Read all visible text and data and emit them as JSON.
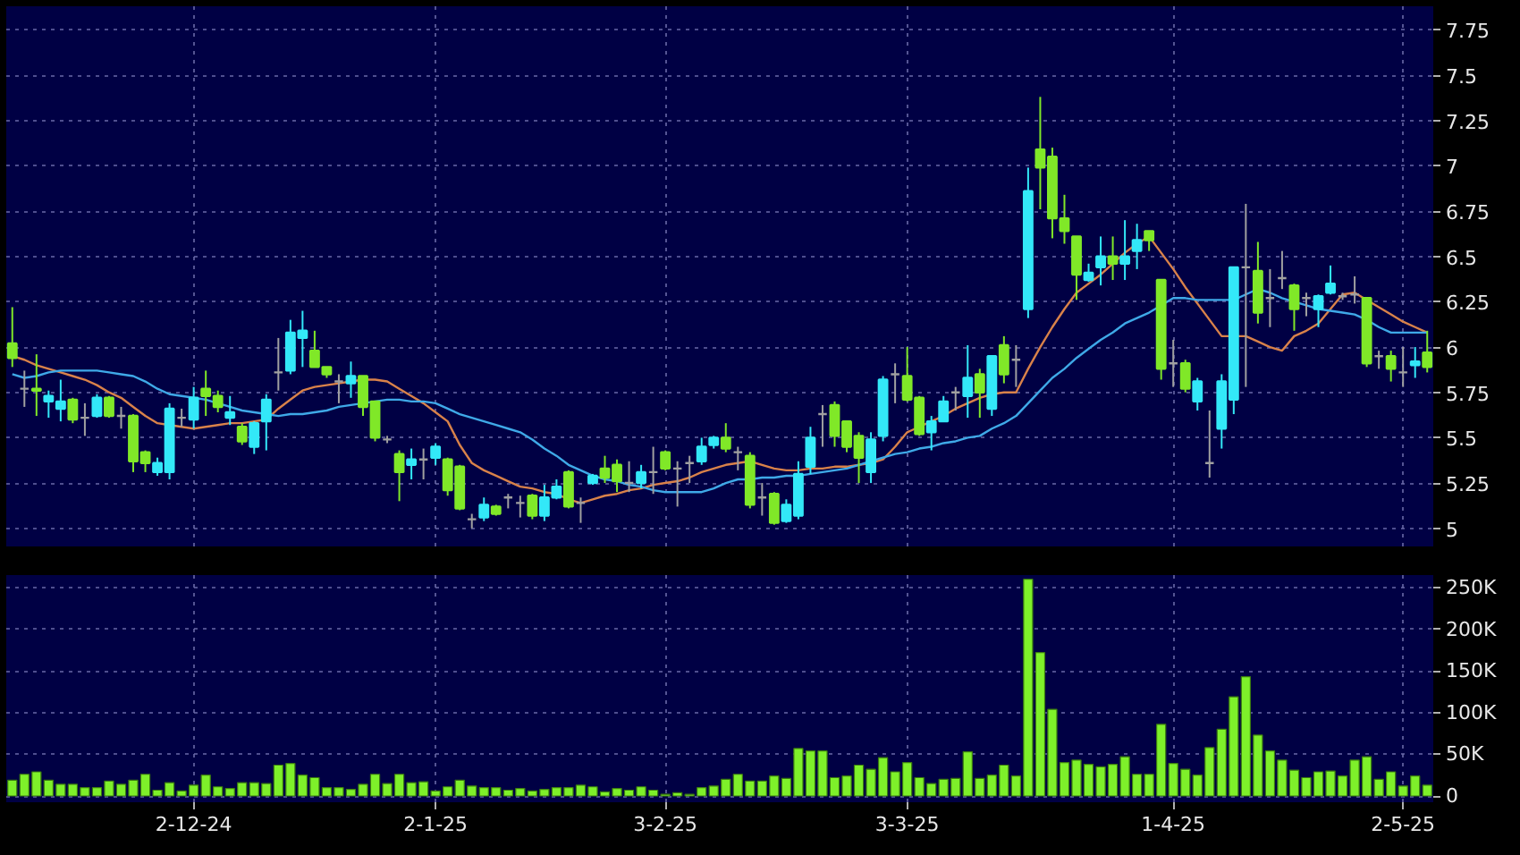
{
  "chart_data": [
    {
      "type": "candlestick",
      "categories": [
        null,
        null,
        null,
        null,
        null,
        null,
        null,
        null,
        null,
        null,
        null,
        null,
        null,
        null,
        null,
        null,
        null,
        null,
        null,
        null,
        null,
        null,
        null,
        null,
        null,
        null,
        null,
        null,
        null,
        null,
        null,
        null,
        null,
        null,
        null,
        null,
        null,
        null,
        null,
        null,
        null,
        null,
        null,
        null,
        null,
        null,
        null,
        null,
        null,
        null,
        null,
        null,
        null,
        null,
        null,
        null,
        null,
        null,
        null,
        null,
        null,
        null,
        null,
        null,
        null,
        null,
        null,
        null,
        null,
        null,
        null,
        null,
        null,
        null,
        null,
        null,
        null,
        null,
        null,
        null,
        null,
        null,
        null,
        null,
        null,
        null,
        null,
        null,
        null,
        null,
        null,
        null,
        null,
        null,
        null,
        null,
        null,
        null,
        null,
        null,
        null,
        null,
        null,
        null,
        null,
        null,
        null,
        null,
        null,
        null,
        null,
        null,
        null,
        null,
        null,
        null,
        null,
        null
      ],
      "ohlc": [
        [
          6.02,
          6.22,
          5.89,
          5.94
        ],
        [
          5.77,
          5.87,
          5.67,
          5.77
        ],
        [
          5.77,
          5.96,
          5.62,
          5.76
        ],
        [
          5.7,
          5.76,
          5.61,
          5.73
        ],
        [
          5.66,
          5.82,
          5.59,
          5.7
        ],
        [
          5.71,
          5.72,
          5.58,
          5.6
        ],
        [
          5.61,
          5.69,
          5.51,
          5.61
        ],
        [
          5.62,
          5.74,
          5.61,
          5.72
        ],
        [
          5.72,
          5.73,
          5.61,
          5.62
        ],
        [
          5.62,
          5.67,
          5.55,
          5.62
        ],
        [
          5.62,
          5.63,
          5.31,
          5.37
        ],
        [
          5.42,
          5.43,
          5.31,
          5.36
        ],
        [
          5.31,
          5.39,
          5.29,
          5.36
        ],
        [
          5.31,
          5.69,
          5.27,
          5.66
        ],
        [
          5.61,
          5.66,
          5.56,
          5.61
        ],
        [
          5.6,
          5.78,
          5.55,
          5.72
        ],
        [
          5.77,
          5.87,
          5.62,
          5.73
        ],
        [
          5.73,
          5.76,
          5.64,
          5.67
        ],
        [
          5.61,
          5.73,
          5.57,
          5.64
        ],
        [
          5.56,
          5.58,
          5.46,
          5.48
        ],
        [
          5.45,
          5.59,
          5.41,
          5.58
        ],
        [
          5.59,
          5.74,
          5.43,
          5.71
        ],
        [
          5.86,
          6.05,
          5.76,
          5.86
        ],
        [
          5.87,
          6.15,
          5.85,
          6.08
        ],
        [
          6.05,
          6.2,
          5.89,
          6.09
        ],
        [
          5.98,
          6.09,
          5.89,
          5.89
        ],
        [
          5.89,
          5.89,
          5.83,
          5.85
        ],
        [
          5.81,
          5.85,
          5.69,
          5.81
        ],
        [
          5.8,
          5.92,
          5.72,
          5.84
        ],
        [
          5.84,
          5.84,
          5.62,
          5.67
        ],
        [
          5.7,
          5.7,
          5.48,
          5.5
        ],
        [
          5.49,
          5.51,
          5.47,
          5.49
        ],
        [
          5.41,
          5.43,
          5.15,
          5.31
        ],
        [
          5.35,
          5.44,
          5.27,
          5.38
        ],
        [
          5.38,
          5.44,
          5.27,
          5.38
        ],
        [
          5.39,
          5.47,
          5.35,
          5.45
        ],
        [
          5.38,
          5.39,
          5.18,
          5.21
        ],
        [
          5.34,
          5.35,
          5.1,
          5.11
        ],
        [
          5.05,
          5.08,
          5.0,
          5.05
        ],
        [
          5.06,
          5.17,
          5.04,
          5.13
        ],
        [
          5.12,
          5.13,
          5.07,
          5.08
        ],
        [
          5.17,
          5.19,
          5.11,
          5.17
        ],
        [
          5.14,
          5.18,
          5.06,
          5.14
        ],
        [
          5.18,
          5.19,
          5.05,
          5.07
        ],
        [
          5.07,
          5.24,
          5.04,
          5.17
        ],
        [
          5.17,
          5.27,
          5.16,
          5.23
        ],
        [
          5.31,
          5.32,
          5.11,
          5.12
        ],
        [
          5.14,
          5.17,
          5.03,
          5.14
        ],
        [
          5.25,
          5.3,
          5.24,
          5.29
        ],
        [
          5.33,
          5.4,
          5.25,
          5.28
        ],
        [
          5.35,
          5.38,
          5.2,
          5.26
        ],
        [
          5.25,
          5.37,
          5.2,
          5.25
        ],
        [
          5.25,
          5.35,
          5.22,
          5.31
        ],
        [
          5.31,
          5.45,
          5.19,
          5.31
        ],
        [
          5.42,
          5.43,
          5.32,
          5.33
        ],
        [
          5.33,
          5.37,
          5.12,
          5.33
        ],
        [
          5.36,
          5.4,
          5.25,
          5.36
        ],
        [
          5.37,
          5.5,
          5.35,
          5.45
        ],
        [
          5.46,
          5.51,
          5.44,
          5.5
        ],
        [
          5.5,
          5.58,
          5.42,
          5.44
        ],
        [
          5.42,
          5.45,
          5.32,
          5.42
        ],
        [
          5.4,
          5.42,
          5.11,
          5.13
        ],
        [
          5.17,
          5.25,
          5.07,
          5.17
        ],
        [
          5.19,
          5.2,
          5.02,
          5.03
        ],
        [
          5.04,
          5.16,
          5.03,
          5.13
        ],
        [
          5.07,
          5.37,
          5.05,
          5.3
        ],
        [
          5.34,
          5.56,
          5.3,
          5.5
        ],
        [
          5.63,
          5.68,
          5.45,
          5.63
        ],
        [
          5.68,
          5.7,
          5.45,
          5.51
        ],
        [
          5.59,
          5.59,
          5.42,
          5.45
        ],
        [
          5.51,
          5.53,
          5.25,
          5.39
        ],
        [
          5.31,
          5.53,
          5.25,
          5.49
        ],
        [
          5.51,
          5.84,
          5.48,
          5.82
        ],
        [
          5.85,
          5.91,
          5.69,
          5.85
        ],
        [
          5.84,
          6.0,
          5.7,
          5.71
        ],
        [
          5.72,
          5.73,
          5.51,
          5.52
        ],
        [
          5.53,
          5.62,
          5.43,
          5.59
        ],
        [
          5.59,
          5.73,
          5.59,
          5.7
        ],
        [
          5.75,
          5.78,
          5.65,
          5.75
        ],
        [
          5.73,
          6.01,
          5.61,
          5.83
        ],
        [
          5.85,
          5.88,
          5.61,
          5.75
        ],
        [
          5.66,
          5.95,
          5.62,
          5.95
        ],
        [
          6.01,
          6.06,
          5.8,
          5.85
        ],
        [
          5.93,
          6.01,
          5.78,
          5.93
        ],
        [
          6.21,
          6.99,
          6.16,
          6.86
        ],
        [
          7.09,
          7.38,
          6.76,
          6.99
        ],
        [
          7.05,
          7.1,
          6.6,
          6.71
        ],
        [
          6.71,
          6.84,
          6.57,
          6.64
        ],
        [
          6.61,
          6.61,
          6.26,
          6.4
        ],
        [
          6.37,
          6.46,
          6.36,
          6.41
        ],
        [
          6.44,
          6.61,
          6.34,
          6.5
        ],
        [
          6.5,
          6.61,
          6.37,
          6.46
        ],
        [
          6.46,
          6.7,
          6.37,
          6.5
        ],
        [
          6.53,
          6.68,
          6.43,
          6.59
        ],
        [
          6.64,
          6.64,
          6.53,
          6.59
        ],
        [
          6.37,
          6.37,
          5.82,
          5.88
        ],
        [
          5.91,
          6.04,
          5.78,
          5.91
        ],
        [
          5.91,
          5.93,
          5.75,
          5.77
        ],
        [
          5.7,
          5.83,
          5.65,
          5.81
        ],
        [
          5.36,
          5.65,
          5.28,
          5.36
        ],
        [
          5.55,
          5.85,
          5.44,
          5.81
        ],
        [
          5.71,
          6.44,
          5.63,
          6.44
        ],
        [
          6.44,
          6.79,
          5.78,
          6.44
        ],
        [
          6.42,
          6.58,
          6.13,
          6.19
        ],
        [
          6.27,
          6.43,
          6.11,
          6.27
        ],
        [
          6.38,
          6.53,
          6.32,
          6.38
        ],
        [
          6.34,
          6.35,
          6.09,
          6.21
        ],
        [
          6.27,
          6.3,
          6.17,
          6.27
        ],
        [
          6.21,
          6.29,
          6.11,
          6.28
        ],
        [
          6.3,
          6.45,
          6.29,
          6.35
        ],
        [
          6.28,
          6.3,
          6.26,
          6.28
        ],
        [
          6.29,
          6.39,
          6.24,
          6.29
        ],
        [
          6.27,
          6.27,
          5.89,
          5.91
        ],
        [
          5.95,
          5.98,
          5.88,
          5.95
        ],
        [
          5.95,
          5.98,
          5.81,
          5.88
        ],
        [
          5.86,
          6.0,
          5.78,
          5.86
        ],
        [
          5.9,
          6.0,
          5.83,
          5.92
        ],
        [
          5.97,
          6.09,
          5.86,
          5.89
        ]
      ],
      "colors": [
        "#80e828",
        "#a0a0a0",
        "#80e828",
        "#33e8f8",
        "#33e8f8",
        "#80e828",
        "#a0a0a0",
        "#33e8f8",
        "#80e828",
        "#a0a0a0",
        "#80e828",
        "#80e828",
        "#33e8f8",
        "#33e8f8",
        "#a0a0a0",
        "#33e8f8",
        "#80e828",
        "#80e828",
        "#33e8f8",
        "#80e828",
        "#33e8f8",
        "#33e8f8",
        "#a0a0a0",
        "#33e8f8",
        "#33e8f8",
        "#80e828",
        "#80e828",
        "#a0a0a0",
        "#33e8f8",
        "#80e828",
        "#80e828",
        "#a0a0a0",
        "#80e828",
        "#33e8f8",
        "#a0a0a0",
        "#33e8f8",
        "#80e828",
        "#80e828",
        "#a0a0a0",
        "#33e8f8",
        "#80e828",
        "#a0a0a0",
        "#a0a0a0",
        "#80e828",
        "#33e8f8",
        "#33e8f8",
        "#80e828",
        "#a0a0a0",
        "#33e8f8",
        "#80e828",
        "#80e828",
        "#a0a0a0",
        "#33e8f8",
        "#a0a0a0",
        "#80e828",
        "#a0a0a0",
        "#a0a0a0",
        "#33e8f8",
        "#33e8f8",
        "#80e828",
        "#a0a0a0",
        "#80e828",
        "#a0a0a0",
        "#80e828",
        "#33e8f8",
        "#33e8f8",
        "#33e8f8",
        "#a0a0a0",
        "#80e828",
        "#80e828",
        "#80e828",
        "#33e8f8",
        "#33e8f8",
        "#a0a0a0",
        "#80e828",
        "#80e828",
        "#33e8f8",
        "#33e8f8",
        "#a0a0a0",
        "#33e8f8",
        "#80e828",
        "#33e8f8",
        "#80e828",
        "#a0a0a0",
        "#33e8f8",
        "#80e828",
        "#80e828",
        "#80e828",
        "#80e828",
        "#33e8f8",
        "#33e8f8",
        "#80e828",
        "#33e8f8",
        "#33e8f8",
        "#80e828",
        "#80e828",
        "#a0a0a0",
        "#80e828",
        "#33e8f8",
        "#a0a0a0",
        "#33e8f8",
        "#33e8f8",
        "#a0a0a0",
        "#80e828",
        "#a0a0a0",
        "#a0a0a0",
        "#80e828",
        "#a0a0a0",
        "#33e8f8",
        "#33e8f8",
        "#a0a0a0",
        "#a0a0a0",
        "#80e828",
        "#a0a0a0",
        "#80e828",
        "#a0a0a0",
        "#33e8f8",
        "#80e828"
      ],
      "series": [
        {
          "type": "line",
          "color": "#d9824a",
          "values": [
            5.95,
            5.93,
            5.9,
            5.88,
            5.86,
            5.84,
            5.82,
            5.79,
            5.75,
            5.72,
            5.67,
            5.62,
            5.58,
            5.57,
            5.56,
            5.55,
            5.56,
            5.57,
            5.58,
            5.58,
            5.59,
            5.6,
            5.66,
            5.71,
            5.76,
            5.78,
            5.79,
            5.8,
            5.81,
            5.82,
            5.82,
            5.81,
            5.77,
            5.73,
            5.69,
            5.64,
            5.59,
            5.46,
            5.36,
            5.32,
            5.29,
            5.26,
            5.23,
            5.22,
            5.2,
            5.19,
            5.16,
            5.14,
            5.16,
            5.18,
            5.19,
            5.21,
            5.22,
            5.24,
            5.25,
            5.26,
            5.28,
            5.31,
            5.33,
            5.35,
            5.36,
            5.37,
            5.35,
            5.33,
            5.32,
            5.32,
            5.33,
            5.33,
            5.34,
            5.34,
            5.35,
            5.36,
            5.38,
            5.45,
            5.53,
            5.56,
            5.59,
            5.62,
            5.66,
            5.69,
            5.72,
            5.74,
            5.75,
            5.75,
            5.88,
            6.0,
            6.11,
            6.21,
            6.3,
            6.35,
            6.4,
            6.46,
            6.52,
            6.57,
            6.61,
            6.52,
            6.43,
            6.33,
            6.24,
            6.15,
            6.06,
            6.06,
            6.06,
            6.03,
            6.0,
            5.98,
            6.06,
            6.09,
            6.13,
            6.21,
            6.29,
            6.3,
            6.26,
            6.22,
            6.18,
            6.14,
            6.11,
            6.08
          ]
        },
        {
          "type": "line",
          "color": "#3fa9e8",
          "values": [
            5.85,
            5.83,
            5.84,
            5.86,
            5.87,
            5.87,
            5.87,
            5.87,
            5.86,
            5.85,
            5.84,
            5.81,
            5.77,
            5.74,
            5.73,
            5.72,
            5.71,
            5.69,
            5.67,
            5.65,
            5.64,
            5.63,
            5.62,
            5.63,
            5.63,
            5.64,
            5.65,
            5.67,
            5.68,
            5.69,
            5.7,
            5.71,
            5.71,
            5.7,
            5.7,
            5.69,
            5.66,
            5.63,
            5.61,
            5.59,
            5.57,
            5.55,
            5.53,
            5.49,
            5.44,
            5.4,
            5.35,
            5.32,
            5.29,
            5.27,
            5.26,
            5.24,
            5.23,
            5.21,
            5.2,
            5.2,
            5.2,
            5.2,
            5.22,
            5.25,
            5.27,
            5.27,
            5.28,
            5.28,
            5.29,
            5.29,
            5.3,
            5.31,
            5.32,
            5.33,
            5.35,
            5.37,
            5.39,
            5.41,
            5.42,
            5.44,
            5.45,
            5.47,
            5.48,
            5.5,
            5.51,
            5.55,
            5.58,
            5.62,
            5.69,
            5.76,
            5.83,
            5.88,
            5.94,
            5.99,
            6.04,
            6.08,
            6.13,
            6.16,
            6.19,
            6.23,
            6.27,
            6.27,
            6.26,
            6.26,
            6.26,
            6.26,
            6.29,
            6.32,
            6.3,
            6.27,
            6.25,
            6.23,
            6.21,
            6.2,
            6.19,
            6.18,
            6.15,
            6.11,
            6.08,
            6.08,
            6.08,
            6.08
          ]
        }
      ],
      "ylim": [
        4.9,
        7.88
      ],
      "yticks": [
        5,
        5.25,
        5.5,
        5.75,
        6,
        6.25,
        6.5,
        6.75,
        7,
        7.25,
        7.5,
        7.75
      ],
      "grid": true
    },
    {
      "type": "bar",
      "categories": [
        null,
        null,
        null,
        null,
        null,
        null,
        null,
        null,
        null,
        null,
        null,
        null,
        null,
        null,
        null,
        "2-12-24",
        null,
        null,
        null,
        null,
        null,
        null,
        null,
        null,
        null,
        null,
        null,
        null,
        null,
        null,
        null,
        null,
        null,
        null,
        null,
        "2-1-25",
        null,
        null,
        null,
        null,
        null,
        null,
        null,
        null,
        null,
        null,
        null,
        null,
        null,
        null,
        null,
        null,
        null,
        null,
        "3-2-25",
        null,
        null,
        null,
        null,
        null,
        null,
        null,
        null,
        null,
        null,
        null,
        null,
        null,
        null,
        null,
        null,
        null,
        null,
        null,
        "3-3-25",
        null,
        null,
        null,
        null,
        null,
        null,
        null,
        null,
        null,
        null,
        null,
        null,
        null,
        null,
        null,
        null,
        null,
        null,
        null,
        null,
        null,
        "1-4-25",
        null,
        null,
        null,
        null,
        null,
        null,
        null,
        null,
        null,
        null,
        null,
        null,
        null,
        null,
        null,
        null,
        null,
        null,
        "2-5-25",
        null,
        null
      ],
      "values": [
        19000,
        26000,
        29000,
        19000,
        14000,
        14000,
        10000,
        10000,
        18000,
        14000,
        19000,
        26000,
        7000,
        16000,
        6000,
        13000,
        25000,
        11000,
        9000,
        16000,
        16000,
        15000,
        37000,
        39000,
        25000,
        22000,
        10000,
        10000,
        8000,
        14000,
        26000,
        15000,
        26000,
        16000,
        17000,
        6000,
        11000,
        19000,
        12000,
        10000,
        10000,
        7000,
        9000,
        6000,
        8000,
        10000,
        10000,
        13000,
        11000,
        5000,
        9000,
        7000,
        11000,
        7000,
        2000,
        4000,
        2000,
        10000,
        12000,
        20000,
        26000,
        18000,
        18000,
        24000,
        21000,
        57000,
        54000,
        54000,
        22000,
        24000,
        37000,
        32000,
        46000,
        29000,
        40000,
        22000,
        15000,
        20000,
        21000,
        53000,
        21000,
        25000,
        37000,
        24000,
        260000,
        172000,
        104000,
        40000,
        43000,
        38000,
        35000,
        38000,
        47000,
        26000,
        26000,
        86000,
        39000,
        32000,
        25000,
        58000,
        80000,
        119000,
        143000,
        73000,
        54000,
        43000,
        31000,
        22000,
        29000,
        30000,
        24000,
        43000,
        47000,
        20000,
        29000,
        12000,
        24000,
        13000
      ],
      "color": "#7ef02a",
      "ylim": [
        -7500,
        265000
      ],
      "yticks": [
        0,
        {
          "value": 50000,
          "label": "50K"
        },
        {
          "value": 100000,
          "label": "100K"
        },
        {
          "value": 150000,
          "label": "150K"
        },
        {
          "value": 200000,
          "label": "200K"
        },
        {
          "value": 250000,
          "label": "250K"
        }
      ],
      "grid": true
    }
  ]
}
